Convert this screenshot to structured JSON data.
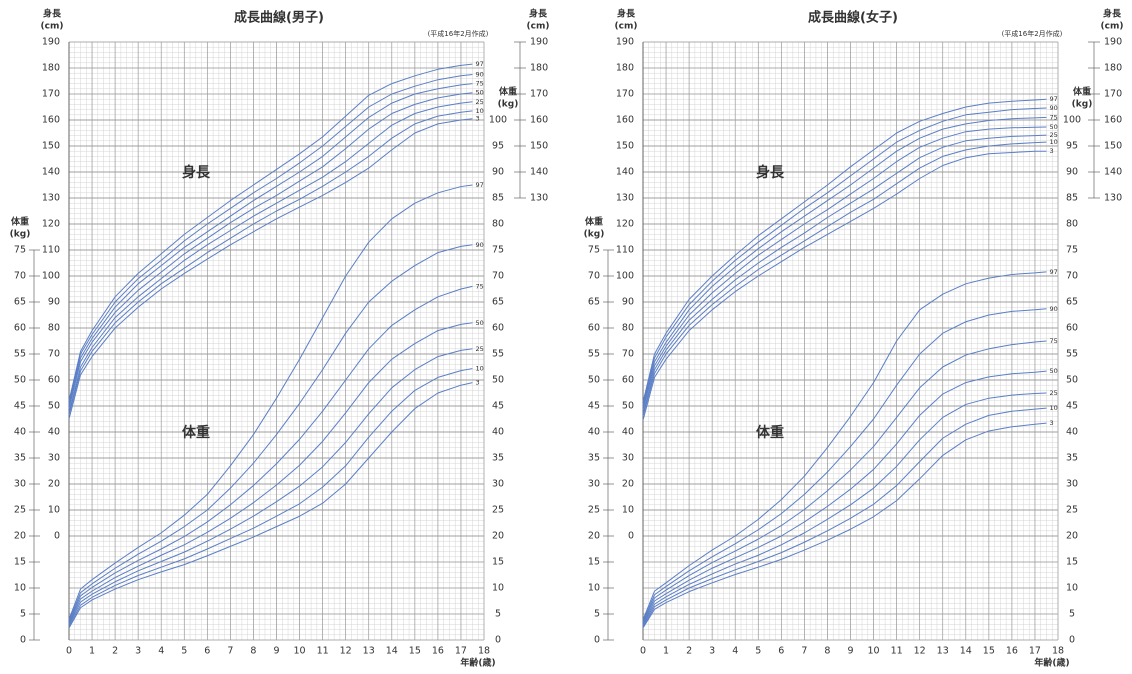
{
  "chart_data": [
    {
      "type": "line",
      "title": "成長曲線(男子)",
      "note": "(平成16年2月作成)",
      "xlabel": "年齢(歳)",
      "ylabel": "身長",
      "yunit": "(cm)",
      "y2label": "体重",
      "y2unit": "(kg)",
      "annotations": [
        "身長",
        "体重"
      ],
      "x": [
        0,
        0.5,
        1,
        2,
        3,
        4,
        5,
        6,
        7,
        8,
        9,
        10,
        11,
        12,
        13,
        14,
        15,
        16,
        17,
        17.5
      ],
      "xlim": [
        0,
        18
      ],
      "xticks": [
        0,
        1,
        2,
        3,
        4,
        5,
        6,
        7,
        8,
        9,
        10,
        11,
        12,
        13,
        14,
        15,
        16,
        17,
        18
      ],
      "ylim": [
        -40,
        190
      ],
      "yticks": [
        0,
        10,
        20,
        30,
        40,
        50,
        60,
        70,
        80,
        90,
        100,
        110,
        120,
        130,
        140,
        150,
        160,
        170,
        180,
        190
      ],
      "right_yticks": [
        130,
        140,
        150,
        160,
        170,
        180,
        190
      ],
      "y2lim": [
        0,
        115
      ],
      "y2ticks": [
        0,
        5,
        10,
        15,
        20,
        25,
        30,
        35,
        40,
        45,
        50,
        55,
        60,
        65,
        70,
        75
      ],
      "right_y2ticks": [
        0,
        5,
        10,
        15,
        20,
        25,
        30,
        35,
        40,
        45,
        50,
        55,
        60,
        65,
        70,
        75,
        80,
        85,
        90,
        95,
        100
      ],
      "grid": true,
      "series": [
        {
          "name": "97",
          "color": "#5b7fc6",
          "values": [
            52,
            71,
            79,
            92,
            101,
            108.5,
            116,
            122.5,
            129,
            135,
            141,
            147,
            153.5,
            161.5,
            169.5,
            174,
            177,
            179.5,
            181,
            181.5
          ]
        },
        {
          "name": "90",
          "color": "#5b7fc6",
          "values": [
            51,
            70,
            77.5,
            90,
            99,
            106,
            113.5,
            120,
            126,
            132,
            137.5,
            143.5,
            150,
            157.5,
            165,
            170,
            173,
            175.5,
            177,
            177.5
          ]
        },
        {
          "name": "75",
          "color": "#5b7fc6",
          "values": [
            50,
            68.5,
            76,
            88,
            97,
            104,
            111,
            117,
            123,
            129,
            134.5,
            140,
            146,
            153.5,
            161,
            166.5,
            170,
            172,
            173.5,
            174
          ]
        },
        {
          "name": "50",
          "color": "#5b7fc6",
          "values": [
            49,
            67,
            74.5,
            86,
            94.5,
            101.5,
            108.5,
            114.5,
            120.5,
            126,
            131,
            136.5,
            142,
            149,
            156.5,
            162.5,
            166,
            168.5,
            170,
            170.5
          ]
        },
        {
          "name": "25",
          "color": "#5b7fc6",
          "values": [
            47.5,
            65,
            72.5,
            84,
            92,
            99,
            106,
            112,
            117.5,
            123,
            128,
            133,
            138,
            144,
            151,
            158,
            162.5,
            165,
            166.5,
            167
          ]
        },
        {
          "name": "10",
          "color": "#5b7fc6",
          "values": [
            46.5,
            63.5,
            71,
            82,
            90,
            97,
            103,
            109,
            114.5,
            120,
            125,
            129.5,
            134.5,
            140,
            146,
            153,
            158.5,
            161.5,
            163,
            163.5
          ]
        },
        {
          "name": "3",
          "color": "#5b7fc6",
          "values": [
            45,
            62,
            69,
            80,
            88,
            95,
            101,
            106.5,
            112,
            117,
            122,
            126.5,
            131,
            136,
            141.5,
            148.5,
            155,
            158.5,
            160,
            160.5
          ]
        },
        {
          "name": "97",
          "color": "#5b7fc6",
          "axis": "y2",
          "values": [
            4.0,
            9.8,
            11.6,
            14.8,
            17.8,
            20.6,
            24.0,
            28.0,
            33.5,
            39.5,
            46.5,
            54.0,
            62.0,
            70.0,
            76.5,
            81.0,
            84.0,
            86.0,
            87.2,
            87.5
          ]
        },
        {
          "name": "90",
          "color": "#5b7fc6",
          "axis": "y2",
          "values": [
            3.7,
            9.1,
            10.8,
            13.8,
            16.5,
            19.0,
            21.8,
            25.0,
            29.2,
            34.0,
            39.5,
            45.5,
            52.0,
            59.0,
            65.0,
            69.0,
            72.0,
            74.5,
            75.7,
            76.0
          ]
        },
        {
          "name": "75",
          "color": "#5b7fc6",
          "axis": "y2",
          "values": [
            3.4,
            8.5,
            10.1,
            12.9,
            15.3,
            17.5,
            19.9,
            22.7,
            26.0,
            29.7,
            33.9,
            38.6,
            44.0,
            50.0,
            56.0,
            60.5,
            63.5,
            66.0,
            67.5,
            68.0
          ]
        },
        {
          "name": "50",
          "color": "#5b7fc6",
          "axis": "y2",
          "values": [
            3.1,
            7.9,
            9.4,
            12.0,
            14.2,
            16.3,
            18.3,
            20.7,
            23.4,
            26.4,
            29.8,
            33.6,
            38.2,
            43.7,
            49.5,
            54.0,
            57.0,
            59.5,
            60.7,
            61.0
          ]
        },
        {
          "name": "25",
          "color": "#5b7fc6",
          "axis": "y2",
          "values": [
            2.9,
            7.3,
            8.8,
            11.2,
            13.3,
            15.1,
            16.9,
            19.0,
            21.3,
            23.8,
            26.6,
            29.6,
            33.3,
            38.0,
            43.5,
            48.5,
            52.0,
            54.5,
            55.7,
            56.0
          ]
        },
        {
          "name": "10",
          "color": "#5b7fc6",
          "axis": "y2",
          "values": [
            2.6,
            6.7,
            8.2,
            10.5,
            12.4,
            14.0,
            15.6,
            17.5,
            19.5,
            21.5,
            23.8,
            26.2,
            29.4,
            33.5,
            39.0,
            44.0,
            48.0,
            50.5,
            51.8,
            52.2
          ]
        },
        {
          "name": "3",
          "color": "#5b7fc6",
          "axis": "y2",
          "values": [
            2.3,
            6.2,
            7.7,
            9.8,
            11.6,
            13.1,
            14.5,
            16.2,
            18.0,
            19.8,
            21.8,
            23.8,
            26.3,
            30.0,
            35.0,
            40.0,
            44.5,
            47.5,
            49.0,
            49.5
          ]
        }
      ]
    },
    {
      "type": "line",
      "title": "成長曲線(女子)",
      "note": "(平成16年2月作成)",
      "xlabel": "年齢(歳)",
      "ylabel": "身長",
      "yunit": "(cm)",
      "y2label": "体重",
      "y2unit": "(kg)",
      "annotations": [
        "身長",
        "体重"
      ],
      "x": [
        0,
        0.5,
        1,
        2,
        3,
        4,
        5,
        6,
        7,
        8,
        9,
        10,
        11,
        12,
        13,
        14,
        15,
        16,
        17,
        17.5
      ],
      "xlim": [
        0,
        18
      ],
      "xticks": [
        0,
        1,
        2,
        3,
        4,
        5,
        6,
        7,
        8,
        9,
        10,
        11,
        12,
        13,
        14,
        15,
        16,
        17,
        18
      ],
      "ylim": [
        -40,
        190
      ],
      "yticks": [
        0,
        10,
        20,
        30,
        40,
        50,
        60,
        70,
        80,
        90,
        100,
        110,
        120,
        130,
        140,
        150,
        160,
        170,
        180,
        190
      ],
      "right_yticks": [
        130,
        140,
        150,
        160,
        170,
        180,
        190
      ],
      "y2lim": [
        0,
        115
      ],
      "y2ticks": [
        0,
        5,
        10,
        15,
        20,
        25,
        30,
        35,
        40,
        45,
        50,
        55,
        60,
        65,
        70,
        75
      ],
      "right_y2ticks": [
        0,
        5,
        10,
        15,
        20,
        25,
        30,
        35,
        40,
        45,
        50,
        55,
        60,
        65,
        70,
        75,
        80,
        85,
        90,
        95,
        100
      ],
      "grid": true,
      "series": [
        {
          "name": "97",
          "color": "#5b7fc6",
          "values": [
            51.5,
            70,
            78,
            91,
            100,
            108,
            115.5,
            122,
            128.5,
            135,
            142,
            148.5,
            155,
            159.5,
            162.5,
            165,
            166.5,
            167.2,
            167.7,
            168
          ]
        },
        {
          "name": "90",
          "color": "#5b7fc6",
          "values": [
            50.5,
            68.5,
            76.5,
            89,
            98,
            106,
            113,
            119.5,
            126,
            132,
            138.5,
            145,
            151.5,
            156,
            159.5,
            162,
            163,
            164,
            164.4,
            164.6
          ]
        },
        {
          "name": "75",
          "color": "#5b7fc6",
          "values": [
            49.5,
            67,
            74.5,
            87,
            96,
            103.5,
            110.5,
            117,
            123,
            129,
            135,
            141.5,
            148,
            153,
            156.5,
            158.5,
            159.8,
            160.5,
            160.8,
            161
          ]
        },
        {
          "name": "50",
          "color": "#5b7fc6",
          "values": [
            48.5,
            65.5,
            73,
            85,
            93.5,
            101,
            108,
            114,
            120,
            125.5,
            131.5,
            137.5,
            144,
            149.5,
            153,
            155.5,
            156.5,
            157,
            157.2,
            157.3
          ]
        },
        {
          "name": "25",
          "color": "#5b7fc6",
          "values": [
            47,
            64,
            71.5,
            83,
            91,
            98.5,
            105,
            111,
            116.5,
            122.5,
            128,
            133.5,
            139.5,
            145.5,
            149.5,
            152,
            153,
            153.7,
            154,
            154.2
          ]
        },
        {
          "name": "10",
          "color": "#5b7fc6",
          "values": [
            46,
            62.5,
            70,
            81,
            89,
            96,
            102.5,
            108,
            113.5,
            119,
            124.5,
            129.5,
            135.5,
            141.5,
            146,
            148.5,
            150,
            150.8,
            151.3,
            151.5
          ]
        },
        {
          "name": "3",
          "color": "#5b7fc6",
          "values": [
            44.5,
            61,
            68,
            79,
            87,
            94,
            100,
            105.5,
            111,
            116,
            121,
            126,
            131.5,
            137.5,
            142.5,
            145.5,
            147,
            147.5,
            148,
            148
          ]
        },
        {
          "name": "97",
          "color": "#5b7fc6",
          "axis": "y2",
          "values": [
            3.9,
            9.4,
            11.0,
            14.3,
            17.3,
            20.0,
            23.2,
            27.0,
            31.5,
            37.0,
            43.0,
            49.5,
            57.5,
            63.5,
            66.5,
            68.5,
            69.6,
            70.3,
            70.6,
            70.8
          ]
        },
        {
          "name": "90",
          "color": "#5b7fc6",
          "axis": "y2",
          "values": [
            3.6,
            8.7,
            10.3,
            13.3,
            16.0,
            18.5,
            21.2,
            24.3,
            28.0,
            32.3,
            37.2,
            42.5,
            49.0,
            55.0,
            59.0,
            61.2,
            62.5,
            63.2,
            63.5,
            63.7
          ]
        },
        {
          "name": "75",
          "color": "#5b7fc6",
          "axis": "y2",
          "values": [
            3.3,
            8.1,
            9.6,
            12.4,
            14.9,
            17.1,
            19.4,
            22.0,
            25.1,
            28.7,
            32.7,
            37.2,
            42.8,
            48.5,
            52.5,
            54.8,
            56.0,
            56.8,
            57.3,
            57.5
          ]
        },
        {
          "name": "50",
          "color": "#5b7fc6",
          "axis": "y2",
          "values": [
            3.0,
            7.5,
            8.9,
            11.5,
            13.8,
            15.8,
            17.8,
            20.0,
            22.7,
            25.7,
            29.0,
            32.8,
            37.7,
            43.2,
            47.3,
            49.5,
            50.6,
            51.2,
            51.5,
            51.7
          ]
        },
        {
          "name": "25",
          "color": "#5b7fc6",
          "axis": "y2",
          "values": [
            2.8,
            6.9,
            8.3,
            10.7,
            12.7,
            14.6,
            16.3,
            18.3,
            20.6,
            23.2,
            26.0,
            29.2,
            33.4,
            38.5,
            42.8,
            45.3,
            46.5,
            47.1,
            47.4,
            47.5
          ]
        },
        {
          "name": "10",
          "color": "#5b7fc6",
          "axis": "y2",
          "values": [
            2.5,
            6.4,
            7.7,
            10.0,
            11.8,
            13.5,
            15.1,
            16.8,
            18.8,
            21.0,
            23.4,
            26.1,
            29.7,
            34.3,
            38.8,
            41.5,
            43.2,
            44.0,
            44.4,
            44.6
          ]
        },
        {
          "name": "3",
          "color": "#5b7fc6",
          "axis": "y2",
          "values": [
            2.3,
            5.9,
            7.2,
            9.3,
            11.0,
            12.6,
            14.0,
            15.5,
            17.3,
            19.2,
            21.3,
            23.7,
            26.8,
            31.0,
            35.5,
            38.5,
            40.2,
            41.0,
            41.5,
            41.7
          ]
        }
      ]
    }
  ]
}
